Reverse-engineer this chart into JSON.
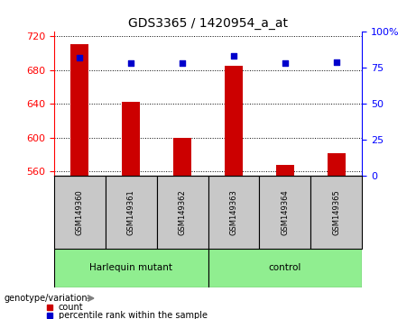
{
  "title": "GDS3365 / 1420954_a_at",
  "samples": [
    "GSM149360",
    "GSM149361",
    "GSM149362",
    "GSM149363",
    "GSM149364",
    "GSM149365"
  ],
  "counts": [
    710,
    642,
    600,
    685,
    567,
    581
  ],
  "percentiles": [
    82,
    78,
    78,
    83,
    78,
    79
  ],
  "ylim_left": [
    555,
    725
  ],
  "ylim_right": [
    0,
    100
  ],
  "yticks_left": [
    560,
    600,
    640,
    680,
    720
  ],
  "yticks_right": [
    0,
    25,
    50,
    75,
    100
  ],
  "bar_color": "#cc0000",
  "dot_color": "#0000cc",
  "background_tick": "#c8c8c8",
  "background_group": "#90ee90",
  "genotype_label": "genotype/variation",
  "legend_count_label": "count",
  "legend_percentile_label": "percentile rank within the sample",
  "group1_label": "Harlequin mutant",
  "group2_label": "control"
}
